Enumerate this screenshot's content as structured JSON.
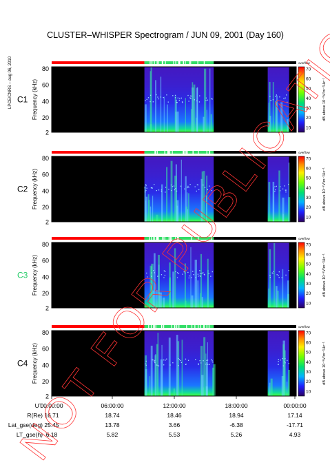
{
  "title": "CLUSTER–WHISPER Spectrogram / JUN 09, 2001 (Day 160)",
  "side_label": "LPCE/CNRS – aug 06, 2010",
  "watermark": "NOT FOR PUBLICATION",
  "colors": {
    "mode_red": "#ff0000",
    "mode_green": "#33dd66",
    "mode_black": "#000000",
    "watermark": "#ff3333",
    "spacecraft_c3": "#22cc66"
  },
  "chart_data": {
    "type": "heatmap",
    "panels": [
      {
        "name": "C1",
        "label_color": "#000000"
      },
      {
        "name": "C2",
        "label_color": "#000000"
      },
      {
        "name": "C3",
        "label_color": "#22cc66"
      },
      {
        "name": "C4",
        "label_color": "#000000"
      }
    ],
    "ylabel": "Frequency (kHz)",
    "yticks": [
      "2",
      "20",
      "40",
      "60",
      "80"
    ],
    "ylim": [
      2,
      82
    ],
    "colorbar": {
      "label": "dB above 10⁻⁸V²m⁻²Hz⁻¹",
      "ticks": [
        "10",
        "20",
        "30",
        "40",
        "50",
        "60",
        "70"
      ],
      "range": [
        5,
        72
      ],
      "header": "overflow"
    },
    "xlim_hours": [
      0,
      24
    ],
    "data_intervals_hours": [
      [
        9.1,
        15.9
      ],
      [
        21.2,
        23.3
      ]
    ],
    "mode_bar": [
      {
        "from": 0,
        "to": 9.1,
        "mode": "red"
      },
      {
        "from": 9.1,
        "to": 15.9,
        "mode": "green"
      },
      {
        "from": 15.9,
        "to": 24,
        "mode": "black"
      }
    ],
    "x_rows": [
      {
        "label": "UT",
        "values": [
          "00:00:00",
          "06:00:00",
          "12:00:00",
          "18:00:00",
          "00:00:00"
        ]
      },
      {
        "label": "R(Re)",
        "values": [
          "16.71",
          "18.74",
          "18.46",
          "18.94",
          "17.14"
        ]
      },
      {
        "label": "Lat_gse(deg)",
        "values": [
          "25.45",
          "13.78",
          "3.66",
          "-6.38",
          "-17.71"
        ]
      },
      {
        "label": "LT_gse(h)",
        "values": [
          "6.18",
          "5.82",
          "5.53",
          "5.26",
          "4.93"
        ]
      }
    ]
  }
}
